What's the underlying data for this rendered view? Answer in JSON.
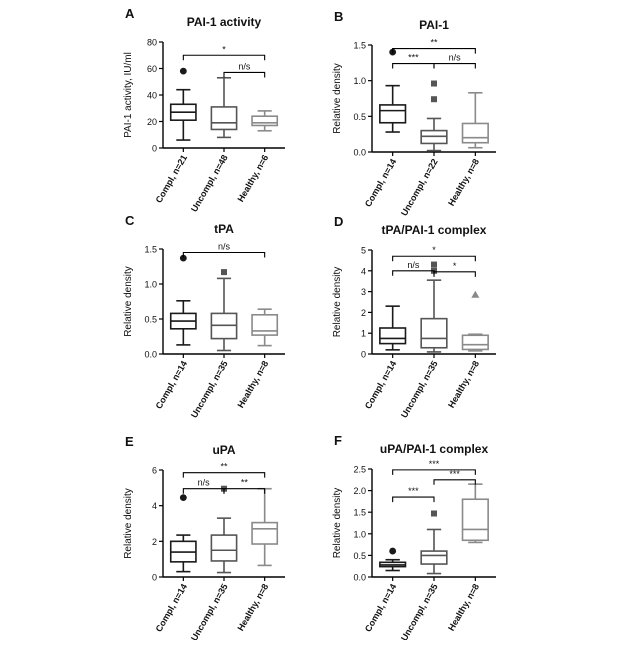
{
  "figure": {
    "background": "#ffffff"
  },
  "chart_data": [
    {
      "panel": "A",
      "type": "box",
      "title": "PAI-1 activity",
      "ylabel": "PAI-1 activity, IU/ml",
      "ylim": [
        0,
        80
      ],
      "yticks": [
        0,
        20,
        40,
        60,
        80
      ],
      "yticklabels": [
        "0",
        "20",
        "40",
        "60",
        "80"
      ],
      "categories": [
        "Compl, n=21",
        "Uncompl, n=48",
        "Healthy, n=6"
      ],
      "boxes": [
        {
          "whisker_low": 6,
          "q1": 21,
          "median": 27,
          "q3": 33,
          "whisker_high": 44,
          "outliers": [
            58
          ],
          "color": "#1a1a1a",
          "marker": "circle"
        },
        {
          "whisker_low": 8,
          "q1": 14,
          "median": 19,
          "q3": 31,
          "whisker_high": 53,
          "outliers": [],
          "color": "#555555",
          "marker": "square"
        },
        {
          "whisker_low": 13,
          "q1": 17,
          "median": 19,
          "q3": 24,
          "whisker_high": 28,
          "outliers": [],
          "color": "#8a8a8a",
          "marker": "triangle"
        }
      ],
      "significance": [
        {
          "from": 0,
          "to": 2,
          "label": "*",
          "y": 70
        },
        {
          "from": 1,
          "to": 2,
          "label": "n/s",
          "y": 57
        }
      ]
    },
    {
      "panel": "B",
      "type": "box",
      "title": "PAI-1",
      "ylabel": "Relative density",
      "ylim": [
        0,
        1.5
      ],
      "yticks": [
        0,
        0.5,
        1.0,
        1.5
      ],
      "yticklabels": [
        "0.0",
        "0.5",
        "1.0",
        "1.5"
      ],
      "categories": [
        "Compl, n=14",
        "Uncompl, n=22",
        "Healthy, n=8"
      ],
      "boxes": [
        {
          "whisker_low": 0.28,
          "q1": 0.41,
          "median": 0.58,
          "q3": 0.66,
          "whisker_high": 0.93,
          "outliers": [
            1.4
          ],
          "color": "#1a1a1a",
          "marker": "circle"
        },
        {
          "whisker_low": 0.02,
          "q1": 0.12,
          "median": 0.22,
          "q3": 0.3,
          "whisker_high": 0.47,
          "outliers": [
            0.74,
            0.96
          ],
          "color": "#555555",
          "marker": "square"
        },
        {
          "whisker_low": 0.06,
          "q1": 0.13,
          "median": 0.2,
          "q3": 0.4,
          "whisker_high": 0.83,
          "outliers": [],
          "color": "#8a8a8a",
          "marker": "triangle"
        }
      ],
      "significance": [
        {
          "from": 0,
          "to": 2,
          "label": "**",
          "y": 1.45
        },
        {
          "from": 0,
          "to": 1,
          "label": "***",
          "y": 1.24
        },
        {
          "from": 1,
          "to": 2,
          "label": "n/s",
          "y": 1.24
        }
      ]
    },
    {
      "panel": "C",
      "type": "box",
      "title": "tPA",
      "ylabel": "Relative density",
      "ylim": [
        0,
        1.5
      ],
      "yticks": [
        0,
        0.5,
        1.0,
        1.5
      ],
      "yticklabels": [
        "0.0",
        "0.5",
        "1.0",
        "1.5"
      ],
      "categories": [
        "Compl, n=14",
        "Uncompl, n=35",
        "Healthy, n=8"
      ],
      "boxes": [
        {
          "whisker_low": 0.13,
          "q1": 0.36,
          "median": 0.47,
          "q3": 0.58,
          "whisker_high": 0.76,
          "outliers": [
            1.37
          ],
          "color": "#1a1a1a",
          "marker": "circle"
        },
        {
          "whisker_low": 0.05,
          "q1": 0.22,
          "median": 0.41,
          "q3": 0.58,
          "whisker_high": 1.08,
          "outliers": [
            1.17
          ],
          "color": "#555555",
          "marker": "square"
        },
        {
          "whisker_low": 0.12,
          "q1": 0.27,
          "median": 0.33,
          "q3": 0.56,
          "whisker_high": 0.64,
          "outliers": [],
          "color": "#8a8a8a",
          "marker": "triangle"
        }
      ],
      "significance": [
        {
          "from": 0,
          "to": 2,
          "label": "n/s",
          "y": 1.45
        }
      ]
    },
    {
      "panel": "D",
      "type": "box",
      "title": "tPA/PAI-1 complex",
      "ylabel": "Relative density",
      "ylim": [
        0,
        5
      ],
      "yticks": [
        0,
        1,
        2,
        3,
        4,
        5
      ],
      "yticklabels": [
        "0",
        "1",
        "2",
        "3",
        "4",
        "5"
      ],
      "categories": [
        "Compl, n=14",
        "Uncompl, n=35",
        "Healthy, n=8"
      ],
      "boxes": [
        {
          "whisker_low": 0.2,
          "q1": 0.5,
          "median": 0.75,
          "q3": 1.25,
          "whisker_high": 2.3,
          "outliers": [],
          "color": "#1a1a1a",
          "marker": "circle"
        },
        {
          "whisker_low": 0.1,
          "q1": 0.3,
          "median": 0.75,
          "q3": 1.7,
          "whisker_high": 3.55,
          "outliers": [
            4.0,
            4.3
          ],
          "color": "#555555",
          "marker": "square"
        },
        {
          "whisker_low": 0.15,
          "q1": 0.22,
          "median": 0.45,
          "q3": 0.9,
          "whisker_high": 0.95,
          "outliers": [
            2.85
          ],
          "color": "#8a8a8a",
          "marker": "triangle"
        }
      ],
      "significance": [
        {
          "from": 0,
          "to": 2,
          "label": "*",
          "y": 4.7
        },
        {
          "from": 0,
          "to": 1,
          "label": "n/s",
          "y": 4.0
        },
        {
          "from": 1,
          "to": 2,
          "label": "*",
          "y": 3.95
        }
      ]
    },
    {
      "panel": "E",
      "type": "box",
      "title": "uPA",
      "ylabel": "Relative density",
      "ylim": [
        0,
        6
      ],
      "yticks": [
        0,
        2,
        4,
        6
      ],
      "yticklabels": [
        "0",
        "2",
        "4",
        "6"
      ],
      "categories": [
        "Compl, n=14",
        "Uncompl, n=35",
        "Healthy, n=8"
      ],
      "boxes": [
        {
          "whisker_low": 0.3,
          "q1": 0.85,
          "median": 1.4,
          "q3": 2.0,
          "whisker_high": 2.35,
          "outliers": [
            4.45
          ],
          "color": "#1a1a1a",
          "marker": "circle"
        },
        {
          "whisker_low": 0.25,
          "q1": 0.9,
          "median": 1.5,
          "q3": 2.35,
          "whisker_high": 3.3,
          "outliers": [
            4.95
          ],
          "color": "#555555",
          "marker": "square"
        },
        {
          "whisker_low": 0.65,
          "q1": 1.85,
          "median": 2.7,
          "q3": 3.05,
          "whisker_high": 4.95,
          "outliers": [],
          "color": "#8a8a8a",
          "marker": "triangle"
        }
      ],
      "significance": [
        {
          "from": 0,
          "to": 2,
          "label": "**",
          "y": 5.85
        },
        {
          "from": 0,
          "to": 1,
          "label": "n/s",
          "y": 4.95
        },
        {
          "from": 1,
          "to": 2,
          "label": "**",
          "y": 4.95
        }
      ]
    },
    {
      "panel": "F",
      "type": "box",
      "title": "uPA/PAI-1 complex",
      "ylabel": "Relative density",
      "ylim": [
        0,
        2.5
      ],
      "yticks": [
        0,
        0.5,
        1.0,
        1.5,
        2.0,
        2.5
      ],
      "yticklabels": [
        "0.0",
        "0.5",
        "1.0",
        "1.5",
        "2.0",
        "2.5"
      ],
      "categories": [
        "Compl, n=14",
        "Uncompl, n=35",
        "Healthy, n=8"
      ],
      "boxes": [
        {
          "whisker_low": 0.15,
          "q1": 0.24,
          "median": 0.28,
          "q3": 0.34,
          "whisker_high": 0.4,
          "outliers": [
            0.6
          ],
          "color": "#1a1a1a",
          "marker": "circle"
        },
        {
          "whisker_low": 0.08,
          "q1": 0.3,
          "median": 0.5,
          "q3": 0.6,
          "whisker_high": 1.1,
          "outliers": [
            1.47
          ],
          "color": "#555555",
          "marker": "square"
        },
        {
          "whisker_low": 0.8,
          "q1": 0.85,
          "median": 1.1,
          "q3": 1.8,
          "whisker_high": 2.15,
          "outliers": [],
          "color": "#8a8a8a",
          "marker": "triangle"
        }
      ],
      "significance": [
        {
          "from": 0,
          "to": 2,
          "label": "***",
          "y": 2.48
        },
        {
          "from": 0,
          "to": 1,
          "label": "***",
          "y": 1.85
        },
        {
          "from": 1,
          "to": 2,
          "label": "***",
          "y": 2.25
        }
      ]
    }
  ]
}
